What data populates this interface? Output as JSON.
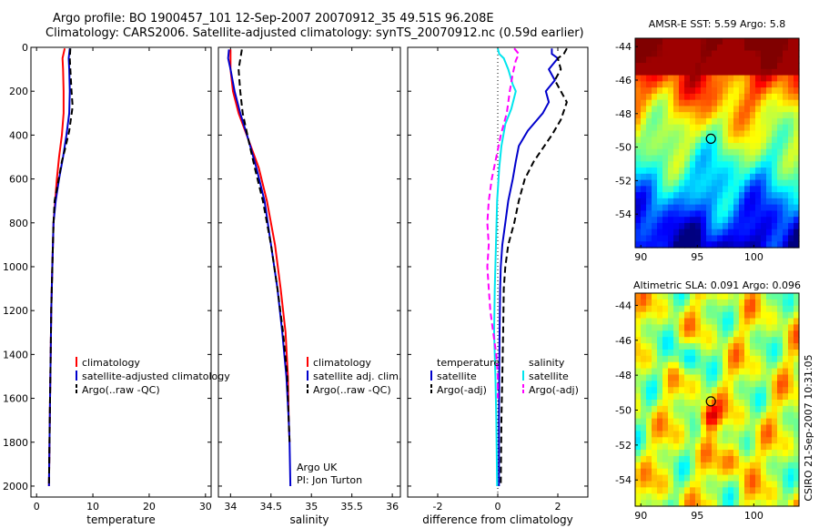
{
  "header": {
    "title_line1": "Argo profile: BO 1900457_101 12-Sep-2007 20070912_35 49.51S 96.208E",
    "title_line2": "Climatology: CARS2006. Satellite-adjusted climatology: synTS_20070912.nc (0.59d earlier)"
  },
  "credit": {
    "line1": "Argo UK",
    "line2": "PI: Jon Turton"
  },
  "stamp": "CSIRO 21-Sep-2007 10:31:05",
  "colors": {
    "climatology": "#ff0000",
    "satellite": "#0000cc",
    "argo": "#000000",
    "salinity_satellite": "#00e5ee",
    "salinity_argo": "#ff00ff"
  },
  "chart_data": [
    {
      "type": "line",
      "xlabel": "temperature",
      "xlim": [
        -1,
        31
      ],
      "ylim": [
        2050,
        0
      ],
      "xticks": [
        "0",
        "10",
        "20",
        "30"
      ],
      "yticks": [
        "0",
        "200",
        "400",
        "600",
        "800",
        "1000",
        "1200",
        "1400",
        "1600",
        "1800",
        "2000"
      ],
      "legend": [
        "climatology",
        "satellite-adjusted climatology",
        "Argo(..raw -QC)"
      ],
      "series": [
        {
          "name": "climatology",
          "style": "solid",
          "points": [
            [
              5.0,
              5
            ],
            [
              4.6,
              50
            ],
            [
              4.7,
              100
            ],
            [
              4.8,
              200
            ],
            [
              4.8,
              300
            ],
            [
              4.5,
              400
            ],
            [
              4.0,
              500
            ],
            [
              3.6,
              600
            ],
            [
              3.3,
              700
            ],
            [
              3.0,
              800
            ],
            [
              2.8,
              1000
            ],
            [
              2.6,
              1200
            ],
            [
              2.5,
              1400
            ],
            [
              2.4,
              1600
            ],
            [
              2.3,
              1800
            ],
            [
              2.2,
              2000
            ]
          ]
        },
        {
          "name": "satellite-adjusted climatology",
          "style": "solid",
          "points": [
            [
              5.9,
              5
            ],
            [
              5.7,
              50
            ],
            [
              5.8,
              100
            ],
            [
              5.9,
              200
            ],
            [
              5.8,
              300
            ],
            [
              5.3,
              400
            ],
            [
              4.7,
              500
            ],
            [
              4.0,
              600
            ],
            [
              3.4,
              700
            ],
            [
              3.0,
              800
            ],
            [
              2.8,
              1000
            ],
            [
              2.6,
              1200
            ],
            [
              2.5,
              1400
            ],
            [
              2.4,
              1600
            ],
            [
              2.3,
              1800
            ],
            [
              2.2,
              2000
            ]
          ]
        },
        {
          "name": "Argo(..raw -QC)",
          "style": "dashed",
          "points": [
            [
              6.0,
              5
            ],
            [
              5.9,
              50
            ],
            [
              6.0,
              100
            ],
            [
              6.2,
              200
            ],
            [
              6.4,
              270
            ],
            [
              5.8,
              380
            ],
            [
              5.0,
              470
            ],
            [
              4.5,
              520
            ],
            [
              3.8,
              620
            ],
            [
              3.2,
              700
            ],
            [
              3.0,
              800
            ],
            [
              2.8,
              1000
            ],
            [
              2.6,
              1200
            ],
            [
              2.5,
              1400
            ],
            [
              2.4,
              1600
            ],
            [
              2.3,
              1800
            ],
            [
              2.2,
              2000
            ]
          ]
        }
      ]
    },
    {
      "type": "line",
      "xlabel": "salinity",
      "xlim": [
        33.85,
        36.1
      ],
      "ylim": [
        2050,
        0
      ],
      "xticks": [
        "34",
        "34.5",
        "35",
        "35.5",
        "36"
      ],
      "legend": [
        "climatology",
        "satellite adj. clim.",
        "Argo(..raw -QC)"
      ],
      "series": [
        {
          "name": "climatology",
          "style": "solid",
          "points": [
            [
              34.0,
              10
            ],
            [
              34.0,
              100
            ],
            [
              34.03,
              200
            ],
            [
              34.1,
              300
            ],
            [
              34.22,
              420
            ],
            [
              34.35,
              550
            ],
            [
              34.45,
              700
            ],
            [
              34.55,
              900
            ],
            [
              34.62,
              1100
            ],
            [
              34.68,
              1300
            ],
            [
              34.71,
              1500
            ],
            [
              34.72,
              1700
            ],
            [
              34.73,
              1800
            ]
          ]
        },
        {
          "name": "satellite adj. clim.",
          "style": "solid",
          "points": [
            [
              33.98,
              10
            ],
            [
              33.97,
              50
            ],
            [
              34.0,
              100
            ],
            [
              34.05,
              200
            ],
            [
              34.12,
              300
            ],
            [
              34.22,
              420
            ],
            [
              34.32,
              550
            ],
            [
              34.42,
              700
            ],
            [
              34.5,
              900
            ],
            [
              34.58,
              1100
            ],
            [
              34.64,
              1300
            ],
            [
              34.69,
              1500
            ],
            [
              34.72,
              1700
            ],
            [
              34.73,
              1800
            ],
            [
              34.74,
              2000
            ]
          ]
        },
        {
          "name": "Argo(..raw -QC)",
          "style": "dashed",
          "points": [
            [
              34.14,
              10
            ],
            [
              34.1,
              100
            ],
            [
              34.12,
              200
            ],
            [
              34.15,
              300
            ],
            [
              34.22,
              420
            ],
            [
              34.3,
              550
            ],
            [
              34.4,
              700
            ],
            [
              34.5,
              900
            ],
            [
              34.58,
              1100
            ],
            [
              34.65,
              1300
            ],
            [
              34.7,
              1500
            ],
            [
              34.72,
              1700
            ],
            [
              34.73,
              1800
            ]
          ]
        }
      ]
    },
    {
      "type": "line",
      "xlabel": "difference from climatology",
      "xlim": [
        -3,
        3
      ],
      "ylim": [
        2050,
        0
      ],
      "xticks": [
        "-2",
        "0",
        "2"
      ],
      "legend_groups": [
        {
          "title": "temperature",
          "items": [
            "satellite",
            "Argo(-adj)"
          ]
        },
        {
          "title": "salinity",
          "items": [
            "satellite",
            "Argo(-adj)"
          ]
        }
      ],
      "series": [
        {
          "name": "temperature satellite",
          "style": "solid",
          "points": [
            [
              1.8,
              5
            ],
            [
              1.8,
              30
            ],
            [
              2.0,
              50
            ],
            [
              1.7,
              100
            ],
            [
              1.9,
              150
            ],
            [
              1.6,
              200
            ],
            [
              1.7,
              250
            ],
            [
              1.5,
              300
            ],
            [
              1.0,
              380
            ],
            [
              0.7,
              450
            ],
            [
              0.6,
              520
            ],
            [
              0.5,
              600
            ],
            [
              0.35,
              700
            ],
            [
              0.25,
              800
            ],
            [
              0.15,
              900
            ],
            [
              0.1,
              1000
            ],
            [
              0.08,
              1100
            ],
            [
              0.06,
              1300
            ],
            [
              0.05,
              1500
            ],
            [
              0.04,
              1700
            ],
            [
              0.04,
              2000
            ]
          ]
        },
        {
          "name": "temperature Argo(-adj)",
          "style": "dashed",
          "points": [
            [
              2.3,
              5
            ],
            [
              2.2,
              30
            ],
            [
              2.0,
              50
            ],
            [
              2.1,
              100
            ],
            [
              1.9,
              150
            ],
            [
              2.3,
              250
            ],
            [
              2.1,
              330
            ],
            [
              1.8,
              400
            ],
            [
              1.5,
              460
            ],
            [
              1.2,
              520
            ],
            [
              0.9,
              600
            ],
            [
              0.7,
              700
            ],
            [
              0.55,
              800
            ],
            [
              0.35,
              900
            ],
            [
              0.25,
              1000
            ],
            [
              0.2,
              1100
            ],
            [
              0.18,
              1300
            ],
            [
              0.15,
              1500
            ],
            [
              0.12,
              1700
            ],
            [
              0.1,
              2000
            ]
          ]
        },
        {
          "name": "salinity satellite",
          "style": "solid",
          "points": [
            [
              0.0,
              5
            ],
            [
              0.05,
              30
            ],
            [
              0.2,
              50
            ],
            [
              0.35,
              100
            ],
            [
              0.5,
              170
            ],
            [
              0.6,
              200
            ],
            [
              0.45,
              280
            ],
            [
              0.25,
              350
            ],
            [
              0.12,
              450
            ],
            [
              0.05,
              550
            ],
            [
              -0.02,
              700
            ],
            [
              -0.06,
              900
            ],
            [
              -0.1,
              1100
            ],
            [
              -0.12,
              1300
            ],
            [
              -0.08,
              1500
            ],
            [
              -0.05,
              1700
            ],
            [
              -0.03,
              1900
            ],
            [
              -0.02,
              2000
            ]
          ]
        },
        {
          "name": "salinity Argo(-adj)",
          "style": "dashed",
          "points": [
            [
              0.55,
              5
            ],
            [
              0.7,
              30
            ],
            [
              0.6,
              60
            ],
            [
              0.5,
              120
            ],
            [
              0.4,
              200
            ],
            [
              0.3,
              300
            ],
            [
              0.1,
              400
            ],
            [
              -0.05,
              500
            ],
            [
              -0.2,
              600
            ],
            [
              -0.3,
              700
            ],
            [
              -0.35,
              800
            ],
            [
              -0.3,
              900
            ],
            [
              -0.35,
              1000
            ],
            [
              -0.3,
              1100
            ],
            [
              -0.25,
              1200
            ],
            [
              -0.15,
              1300
            ],
            [
              -0.05,
              1400
            ],
            [
              0.0,
              1500
            ],
            [
              0.0,
              1600
            ]
          ]
        }
      ]
    },
    {
      "type": "heatmap",
      "title": "AMSR-E SST: 5.59 Argo: 5.8",
      "xlim": [
        89.5,
        104
      ],
      "ylim": [
        -56,
        -43.5
      ],
      "xticks": [
        "90",
        "95",
        "100"
      ],
      "yticks": [
        "-44",
        "-46",
        "-48",
        "-50",
        "-52",
        "-54"
      ],
      "marker": {
        "lon": 96.2,
        "lat": -49.5
      }
    },
    {
      "type": "heatmap",
      "title": "Altimetric SLA: 0.091 Argo: 0.096",
      "xlim": [
        89.5,
        104
      ],
      "ylim": [
        -55.5,
        -43.3
      ],
      "xticks": [
        "90",
        "95",
        "100"
      ],
      "yticks": [
        "-44",
        "-46",
        "-48",
        "-50",
        "-52",
        "-54"
      ],
      "marker": {
        "lon": 96.2,
        "lat": -49.5
      }
    }
  ]
}
